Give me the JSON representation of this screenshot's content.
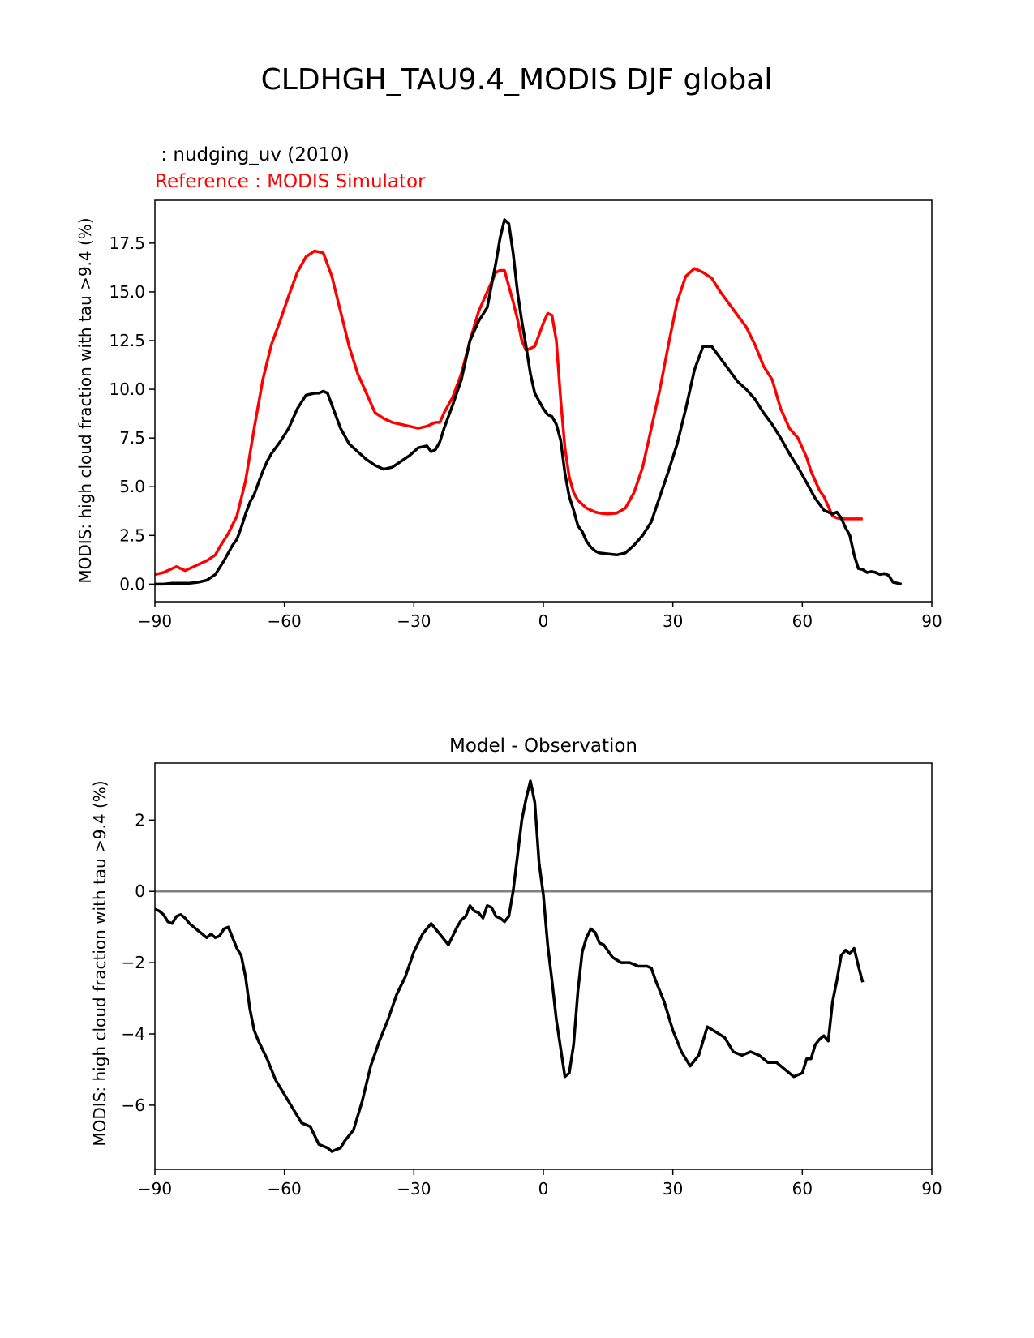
{
  "figure": {
    "title": "CLDHGH_TAU9.4_MODIS DJF global"
  },
  "chart_data": [
    {
      "type": "line",
      "test_label": " : nudging_uv (2010)",
      "reference_label": "Reference : MODIS Simulator",
      "ylabel": "MODIS: high cloud fraction with tau >9.4 (%)",
      "xlabel": "",
      "xlim": [
        -90,
        90
      ],
      "ylim": [
        -0.9,
        19.7
      ],
      "xticks": [
        -90,
        -60,
        -30,
        0,
        30,
        60,
        90
      ],
      "xtick_labels": [
        "−90",
        "−60",
        "−30",
        "0",
        "30",
        "60",
        "90"
      ],
      "yticks": [
        0.0,
        2.5,
        5.0,
        7.5,
        10.0,
        12.5,
        15.0,
        17.5
      ],
      "ytick_labels": [
        "0.0",
        "2.5",
        "5.0",
        "7.5",
        "10.0",
        "12.5",
        "15.0",
        "17.5"
      ],
      "series": [
        {
          "name": "MODIS Simulator (reference)",
          "color": "#ff0000",
          "x": [
            -90,
            -88,
            -86,
            -85,
            -84,
            -83,
            -82,
            -80,
            -78,
            -76,
            -75,
            -73,
            -71,
            -69,
            -67,
            -65,
            -63,
            -61,
            -59,
            -57,
            -55,
            -53,
            -51,
            -49,
            -47,
            -45,
            -43,
            -41,
            -39,
            -37,
            -35,
            -33,
            -31,
            -29,
            -27,
            -25,
            -24,
            -23,
            -21,
            -19,
            -17,
            -15,
            -13,
            -11,
            -10,
            -9,
            -7,
            -6,
            -5,
            -4,
            -2,
            0,
            1,
            2,
            3,
            4,
            5,
            6,
            7,
            8,
            9,
            10,
            11,
            12,
            13,
            15,
            17,
            19,
            21,
            23,
            25,
            27,
            29,
            31,
            33,
            35,
            37,
            39,
            41,
            43,
            45,
            47,
            49,
            51,
            53,
            55,
            57,
            59,
            61,
            62,
            63,
            64,
            65,
            66,
            67,
            68,
            69,
            70,
            71,
            72,
            73,
            74
          ],
          "values": [
            0.5,
            0.6,
            0.8,
            0.9,
            0.8,
            0.7,
            0.8,
            1.0,
            1.2,
            1.5,
            1.9,
            2.6,
            3.5,
            5.3,
            8.0,
            10.5,
            12.3,
            13.5,
            14.8,
            16.0,
            16.8,
            17.1,
            17.0,
            15.8,
            14.0,
            12.2,
            10.8,
            9.8,
            8.8,
            8.5,
            8.3,
            8.2,
            8.1,
            8.0,
            8.1,
            8.3,
            8.3,
            8.8,
            9.6,
            10.8,
            12.5,
            14.0,
            15.0,
            16.0,
            16.1,
            16.1,
            14.5,
            13.6,
            12.5,
            12.0,
            12.2,
            13.4,
            13.9,
            13.8,
            12.5,
            9.5,
            7.0,
            5.5,
            4.7,
            4.3,
            4.1,
            3.9,
            3.8,
            3.7,
            3.65,
            3.6,
            3.65,
            3.9,
            4.7,
            6.0,
            8.0,
            10.0,
            12.3,
            14.5,
            15.8,
            16.2,
            16.0,
            15.7,
            15.0,
            14.4,
            13.8,
            13.2,
            12.3,
            11.2,
            10.5,
            9.0,
            8.0,
            7.5,
            6.5,
            5.8,
            5.3,
            4.8,
            4.5,
            4.0,
            3.5,
            3.4,
            3.35,
            3.35,
            3.35,
            3.35,
            3.35,
            3.35
          ]
        },
        {
          "name": "nudging_uv (2010)",
          "color": "#000000",
          "x": [
            -90,
            -88,
            -86,
            -84,
            -82,
            -80,
            -78,
            -76,
            -74,
            -72,
            -71,
            -70,
            -69,
            -68,
            -67,
            -66,
            -65,
            -64,
            -63,
            -61,
            -59,
            -57,
            -55,
            -53,
            -52,
            -51,
            -50,
            -49,
            -47,
            -45,
            -43,
            -41,
            -39,
            -37,
            -35,
            -33,
            -31,
            -29,
            -27,
            -26,
            -25,
            -24,
            -23,
            -21,
            -19,
            -17,
            -15,
            -13,
            -11,
            -10,
            -9,
            -8,
            -7,
            -6,
            -5,
            -4,
            -3,
            -2,
            -1,
            0,
            1,
            2,
            3,
            4,
            5,
            6,
            7,
            8,
            9,
            10,
            11,
            12,
            13,
            15,
            17,
            19,
            21,
            23,
            25,
            27,
            29,
            31,
            33,
            35,
            37,
            39,
            41,
            43,
            45,
            47,
            49,
            51,
            53,
            55,
            57,
            59,
            61,
            63,
            65,
            67,
            68,
            69,
            70,
            71,
            72,
            73,
            74,
            75,
            76,
            77,
            78,
            79,
            80,
            81,
            82,
            83
          ],
          "values": [
            0.0,
            0.0,
            0.05,
            0.05,
            0.05,
            0.1,
            0.2,
            0.5,
            1.2,
            2.0,
            2.3,
            2.9,
            3.6,
            4.2,
            4.6,
            5.2,
            5.8,
            6.3,
            6.7,
            7.3,
            8.0,
            9.0,
            9.7,
            9.8,
            9.8,
            9.9,
            9.8,
            9.2,
            8.0,
            7.2,
            6.8,
            6.4,
            6.1,
            5.9,
            6.0,
            6.3,
            6.6,
            7.0,
            7.1,
            6.8,
            6.9,
            7.3,
            8.0,
            9.2,
            10.5,
            12.5,
            13.5,
            14.2,
            16.5,
            17.8,
            18.7,
            18.5,
            17.0,
            15.0,
            13.5,
            12.2,
            10.8,
            9.8,
            9.4,
            9.0,
            8.7,
            8.6,
            8.2,
            7.4,
            5.7,
            4.5,
            3.8,
            3.0,
            2.7,
            2.2,
            1.9,
            1.7,
            1.6,
            1.55,
            1.5,
            1.6,
            2.0,
            2.5,
            3.2,
            4.5,
            5.8,
            7.2,
            9.0,
            11.0,
            12.2,
            12.2,
            11.6,
            11.0,
            10.4,
            10.0,
            9.5,
            8.8,
            8.2,
            7.5,
            6.7,
            6.0,
            5.2,
            4.4,
            3.8,
            3.6,
            3.7,
            3.4,
            2.9,
            2.5,
            1.5,
            0.8,
            0.75,
            0.6,
            0.65,
            0.6,
            0.5,
            0.55,
            0.45,
            0.1,
            0.05,
            0.0
          ]
        }
      ]
    },
    {
      "type": "line",
      "title": "Model - Observation",
      "ylabel": "MODIS: high cloud fraction with tau >9.4 (%)",
      "xlabel": "",
      "xlim": [
        -90,
        90
      ],
      "ylim": [
        -7.8,
        3.6
      ],
      "xticks": [
        -90,
        -60,
        -30,
        0,
        30,
        60,
        90
      ],
      "xtick_labels": [
        "−90",
        "−60",
        "−30",
        "0",
        "30",
        "60",
        "90"
      ],
      "yticks": [
        2,
        0,
        -2,
        -4,
        -6
      ],
      "ytick_labels": [
        "2",
        "0",
        "−2",
        "−4",
        "−6"
      ],
      "reference_line": {
        "y": 0,
        "color": "#808080"
      },
      "series": [
        {
          "name": "difference",
          "color": "#000000",
          "x": [
            -90,
            -89,
            -88,
            -87,
            -86,
            -85,
            -84,
            -83,
            -82,
            -81,
            -80,
            -79,
            -78,
            -77,
            -76,
            -75,
            -74,
            -73,
            -72,
            -71,
            -70,
            -69,
            -68,
            -67,
            -66,
            -64,
            -62,
            -60,
            -58,
            -56,
            -54,
            -52,
            -50,
            -49,
            -48,
            -47,
            -46,
            -44,
            -42,
            -40,
            -38,
            -36,
            -34,
            -32,
            -30,
            -28,
            -26,
            -24,
            -22,
            -20,
            -19,
            -18,
            -17,
            -16,
            -15,
            -14,
            -13,
            -12,
            -11,
            -10,
            -9,
            -8,
            -7,
            -6,
            -5,
            -4,
            -3,
            -2,
            -1,
            0,
            1,
            2,
            3,
            4,
            5,
            6,
            7,
            8,
            9,
            10,
            11,
            12,
            13,
            14,
            16,
            18,
            20,
            22,
            24,
            25,
            26,
            28,
            30,
            32,
            34,
            36,
            37,
            38,
            40,
            42,
            44,
            46,
            48,
            50,
            52,
            54,
            56,
            58,
            60,
            61,
            62,
            63,
            64,
            65,
            66,
            67,
            68,
            69,
            70,
            71,
            72,
            73,
            74
          ],
          "values": [
            -0.5,
            -0.55,
            -0.65,
            -0.85,
            -0.9,
            -0.7,
            -0.65,
            -0.75,
            -0.9,
            -1.0,
            -1.1,
            -1.2,
            -1.3,
            -1.2,
            -1.3,
            -1.25,
            -1.05,
            -1.0,
            -1.3,
            -1.6,
            -1.8,
            -2.4,
            -3.3,
            -3.9,
            -4.2,
            -4.7,
            -5.3,
            -5.7,
            -6.1,
            -6.5,
            -6.6,
            -7.1,
            -7.2,
            -7.3,
            -7.25,
            -7.2,
            -7.0,
            -6.7,
            -5.9,
            -4.9,
            -4.2,
            -3.6,
            -2.9,
            -2.4,
            -1.7,
            -1.2,
            -0.9,
            -1.2,
            -1.5,
            -1.0,
            -0.8,
            -0.7,
            -0.4,
            -0.55,
            -0.6,
            -0.75,
            -0.4,
            -0.45,
            -0.7,
            -0.75,
            -0.85,
            -0.7,
            0.0,
            1.0,
            2.0,
            2.6,
            3.1,
            2.5,
            0.8,
            -0.1,
            -1.5,
            -2.5,
            -3.6,
            -4.4,
            -5.2,
            -5.1,
            -4.3,
            -2.8,
            -1.7,
            -1.3,
            -1.05,
            -1.15,
            -1.45,
            -1.5,
            -1.85,
            -2.0,
            -2.0,
            -2.1,
            -2.1,
            -2.15,
            -2.5,
            -3.1,
            -3.9,
            -4.5,
            -4.9,
            -4.6,
            -4.2,
            -3.8,
            -3.95,
            -4.1,
            -4.5,
            -4.6,
            -4.5,
            -4.6,
            -4.8,
            -4.8,
            -5.0,
            -5.2,
            -5.1,
            -4.7,
            -4.7,
            -4.3,
            -4.15,
            -4.05,
            -4.2,
            -3.1,
            -2.5,
            -1.8,
            -1.65,
            -1.75,
            -1.6,
            -2.1,
            -2.55
          ]
        }
      ]
    }
  ]
}
